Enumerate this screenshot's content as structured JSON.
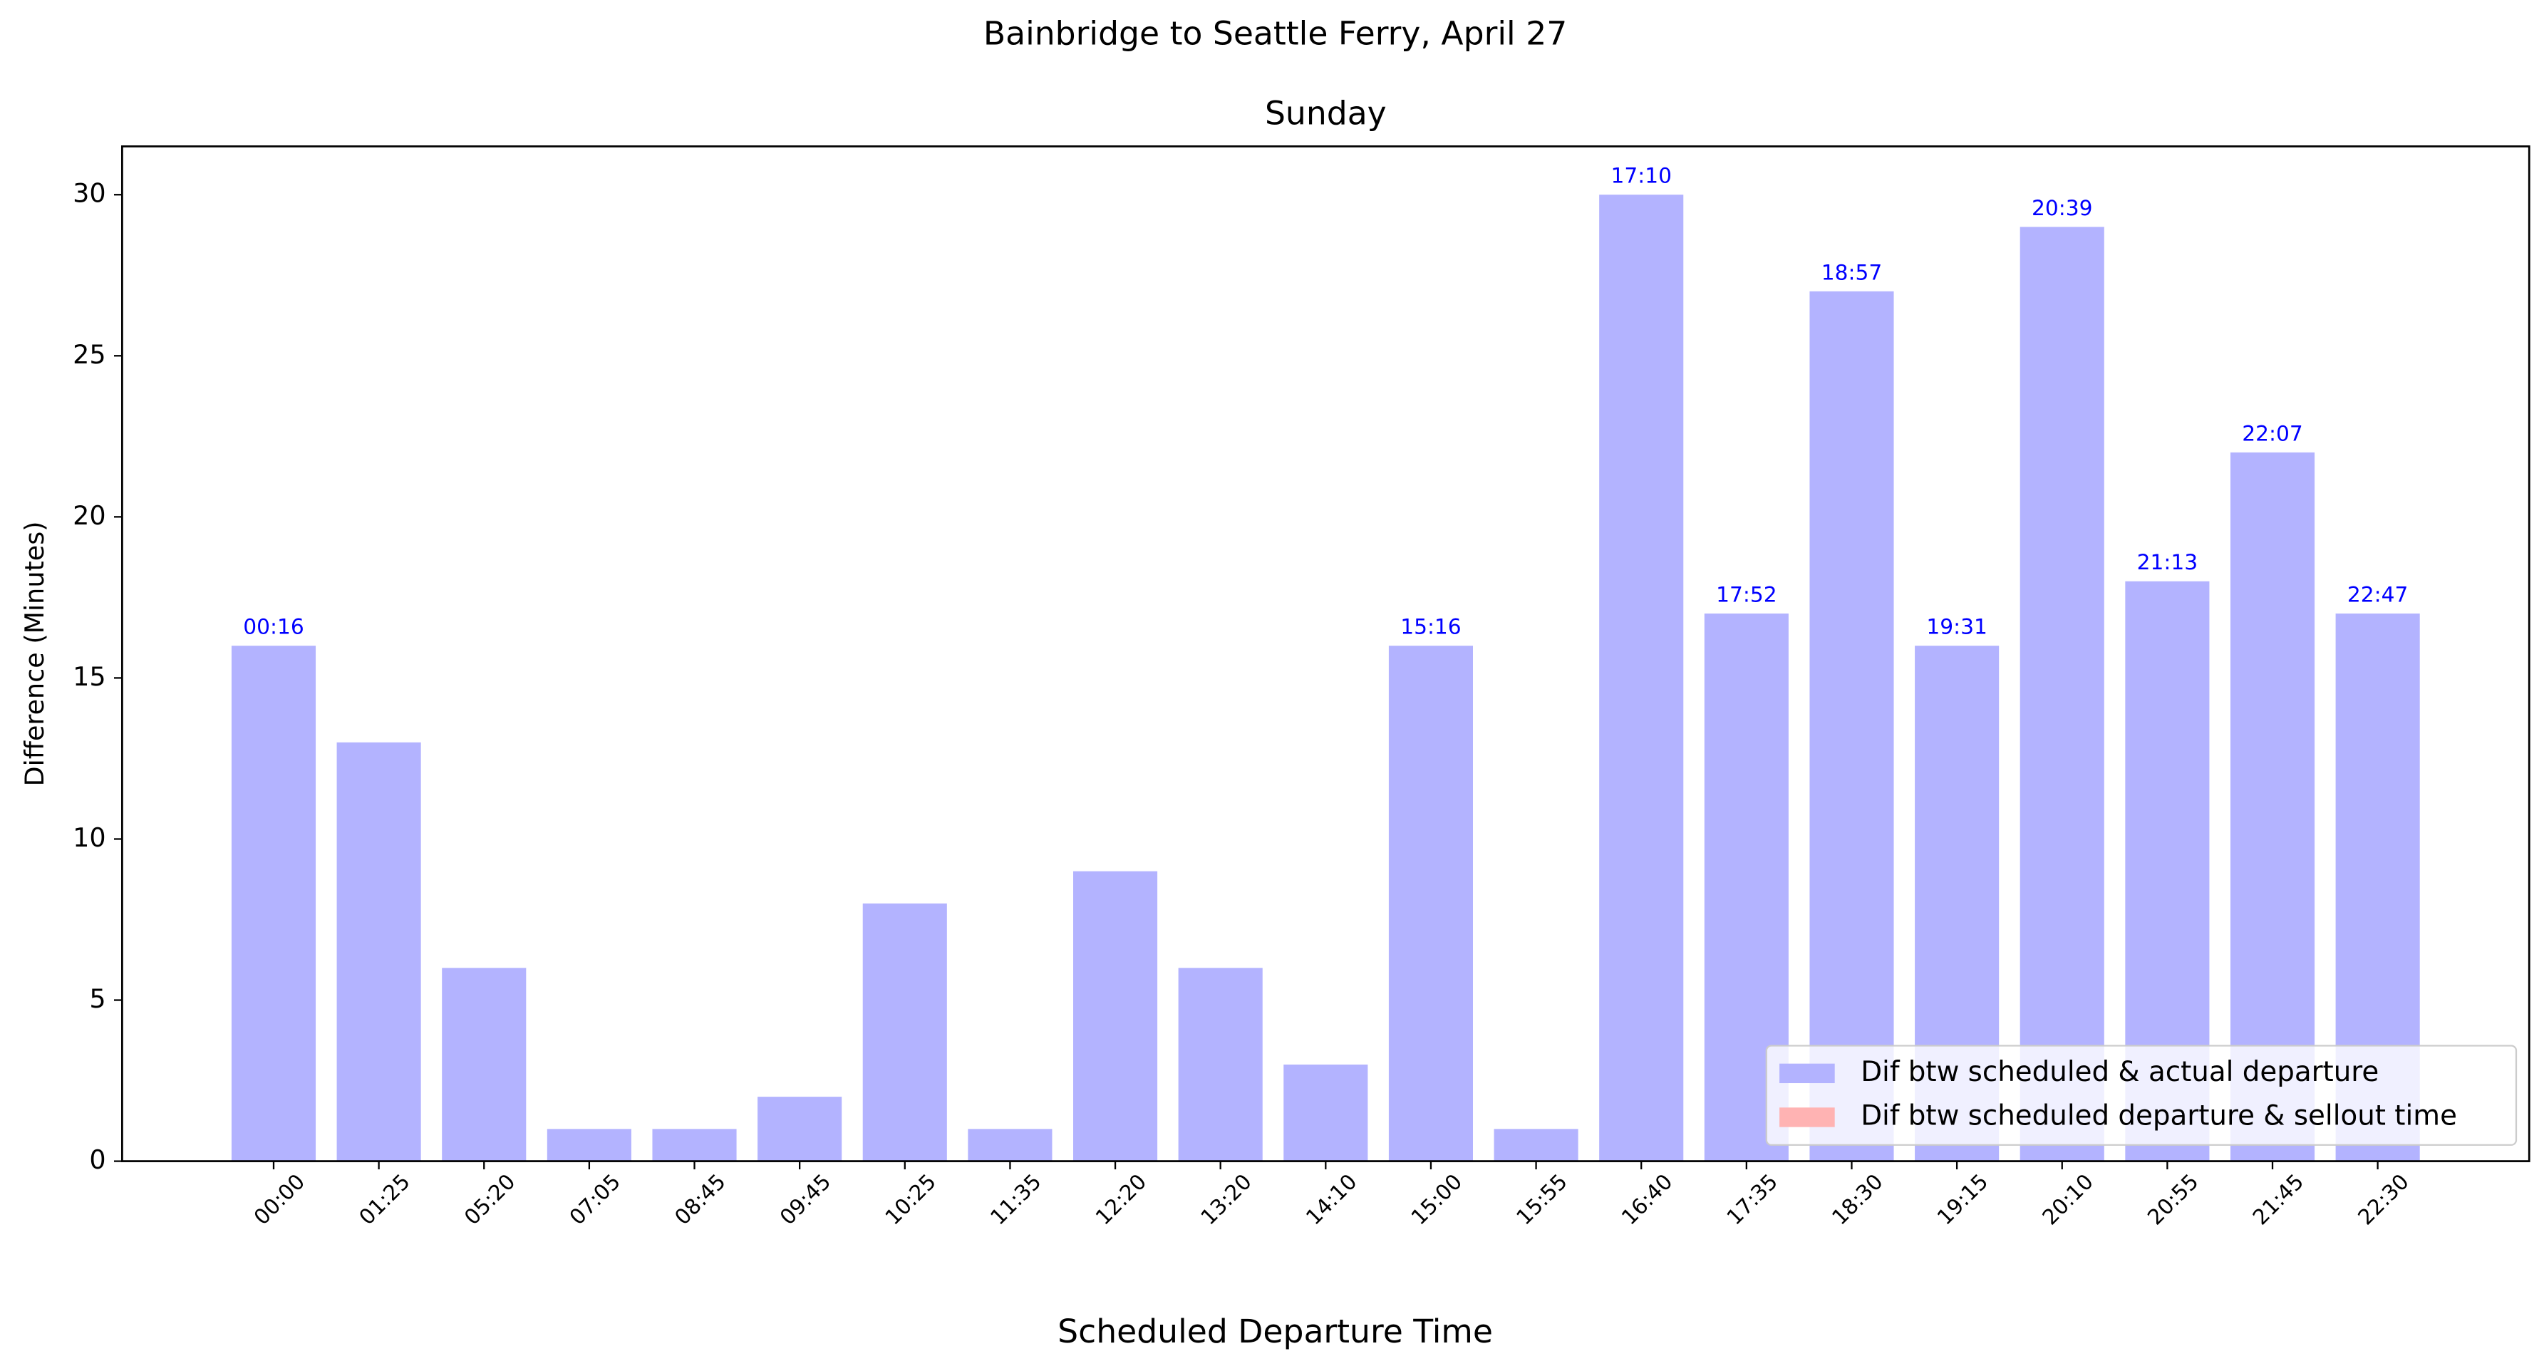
{
  "chart_data": {
    "type": "bar",
    "title": "Bainbridge to Seattle Ferry, April 27",
    "subtitle": "Sunday",
    "x_label": "Scheduled Departure Time",
    "y_label": "Difference (Minutes)",
    "categories": [
      "00:00",
      "01:25",
      "05:20",
      "07:05",
      "08:45",
      "09:45",
      "10:25",
      "11:35",
      "12:20",
      "13:20",
      "14:10",
      "15:00",
      "15:55",
      "16:40",
      "17:35",
      "18:30",
      "19:15",
      "20:10",
      "20:55",
      "21:45",
      "22:30"
    ],
    "series": [
      {
        "name": "Dif btw scheduled & actual departure",
        "color": "#b3b3ff",
        "values": [
          16,
          13,
          6,
          1,
          1,
          2,
          8,
          1,
          9,
          6,
          3,
          16,
          1,
          30,
          17,
          27,
          16,
          29,
          18,
          22,
          17
        ]
      },
      {
        "name": "Dif btw scheduled departure & sellout time",
        "color": "#ffb3b3",
        "values": [
          null,
          null,
          null,
          null,
          null,
          null,
          null,
          null,
          null,
          null,
          null,
          null,
          null,
          null,
          null,
          null,
          null,
          null,
          null,
          null,
          null
        ]
      }
    ],
    "annotations": [
      "00:16",
      null,
      null,
      null,
      null,
      null,
      null,
      null,
      null,
      null,
      null,
      "15:16",
      null,
      "17:10",
      "17:52",
      "18:57",
      "19:31",
      "20:39",
      "21:13",
      "22:07",
      "22:47"
    ],
    "annotation_color": "#0000ff",
    "ylim": [
      0,
      31.5
    ],
    "yticks": [
      0,
      5,
      10,
      15,
      20,
      25,
      30
    ],
    "grid": false,
    "legend": "lower right"
  }
}
